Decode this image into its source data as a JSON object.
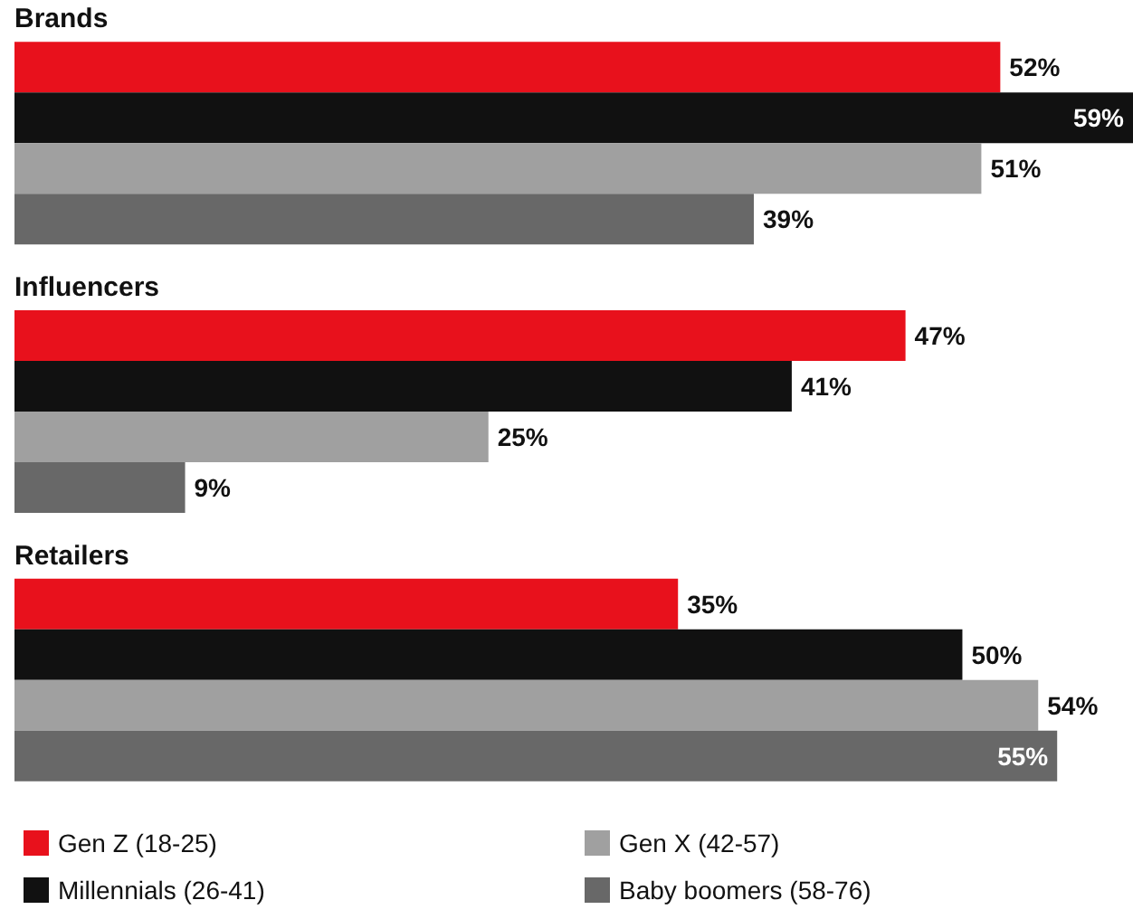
{
  "chart_data": {
    "type": "bar",
    "orientation": "horizontal",
    "categories": [
      "Brands",
      "Influencers",
      "Retailers"
    ],
    "series": [
      {
        "name": "Gen Z (18-25)",
        "color": "#e8111c",
        "values": [
          52,
          47,
          35
        ],
        "value_labels": [
          "52%",
          "47%",
          "35%"
        ]
      },
      {
        "name": "Millennials (26-41)",
        "color": "#111111",
        "values": [
          59,
          41,
          50
        ],
        "value_labels": [
          "59%",
          "41%",
          "50%"
        ]
      },
      {
        "name": "Gen X (42-57)",
        "color": "#a0a0a0",
        "values": [
          51,
          25,
          54
        ],
        "value_labels": [
          "51%",
          "25%",
          "54%"
        ]
      },
      {
        "name": "Baby boomers (58-76)",
        "color": "#686868",
        "values": [
          39,
          9,
          55
        ],
        "value_labels": [
          "39%",
          "9%",
          "55%"
        ]
      }
    ],
    "legend": "bottom"
  }
}
